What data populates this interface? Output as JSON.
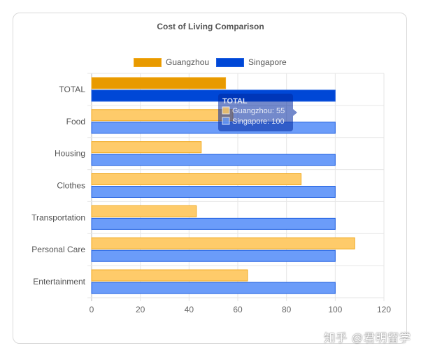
{
  "chart_data": {
    "type": "bar",
    "orientation": "horizontal",
    "title": "Cost of Living Comparison",
    "categories": [
      "TOTAL",
      "Food",
      "Housing",
      "Clothes",
      "Transportation",
      "Personal Care",
      "Entertainment"
    ],
    "series": [
      {
        "name": "Guangzhou",
        "values": [
          55,
          58,
          45,
          86,
          43,
          108,
          64
        ]
      },
      {
        "name": "Singapore",
        "values": [
          100,
          100,
          100,
          100,
          100,
          100,
          100
        ]
      }
    ],
    "xlim": [
      0,
      120
    ],
    "xticks": [
      0,
      20,
      40,
      60,
      80,
      100,
      120
    ],
    "legend": "top",
    "grid": true,
    "tooltip": {
      "category": "TOTAL",
      "title": "TOTAL",
      "lines": [
        "Guangzhou: 55",
        "Singapore: 100"
      ]
    }
  },
  "colors": {
    "guangzhou_fill": "#fecb6a",
    "guangzhou_border": "#f1a91e",
    "guangzhou_active": "#e89a00",
    "singapore_fill": "#6b9cf9",
    "singapore_border": "#1f5fe0",
    "singapore_active": "#0047d6",
    "grid": "#e6e6e6",
    "tooltip_bg": "rgba(0,40,160,0.55)"
  },
  "watermark": "知乎 @君明留学"
}
